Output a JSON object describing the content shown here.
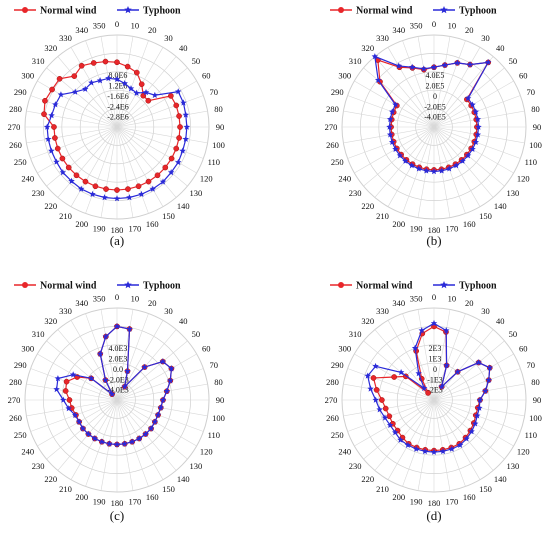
{
  "colors": {
    "normal": "#e8262a",
    "typhoon": "#2a2ad8",
    "grid": "#cfcfcf",
    "spoke": "#d8d8d8"
  },
  "chart_data": [
    {
      "type": "radar",
      "caption": "(a)",
      "legend": [
        "Normal wind",
        "Typhoon"
      ],
      "angle_labels": [
        "0",
        "10",
        "20",
        "30",
        "40",
        "50",
        "60",
        "70",
        "80",
        "90",
        "100",
        "110",
        "120",
        "130",
        "140",
        "150",
        "160",
        "170",
        "180",
        "190",
        "200",
        "210",
        "220",
        "230",
        "240",
        "250",
        "260",
        "270",
        "280",
        "290",
        "300",
        "310",
        "320",
        "330",
        "340",
        "350"
      ],
      "radial_tick_labels": [
        "8.0E6",
        "1.2E6",
        "-1.6E6",
        "-2.4E6",
        "-2.8E6"
      ],
      "rlim": [
        -2800000.0,
        8000000.0
      ],
      "series": [
        {
          "name": "Normal wind",
          "values": [
            4800000.0,
            4400000.0,
            4000000.0,
            3000000.0,
            2000000.0,
            2000000.0,
            4500000.0,
            4600000.0,
            4600000.0,
            4600000.0,
            4600000.0,
            4600000.0,
            4600000.0,
            4600000.0,
            4600000.0,
            4600000.0,
            4600000.0,
            4600000.0,
            4600000.0,
            4600000.0,
            4600000.0,
            4600000.0,
            4600000.0,
            4600000.0,
            4600000.0,
            4600000.0,
            4600000.0,
            4600000.0,
            5900000.0,
            6200000.0,
            6000000.0,
            6000000.0,
            5000000.0,
            5500000.0,
            5200000.0,
            5000000.0
          ]
        },
        {
          "name": "Typhoon",
          "values": [
            2800000.0,
            2400000.0,
            2000000.0,
            1800000.0,
            2500000.0,
            3000000.0,
            5500000.0,
            5500000.0,
            5400000.0,
            5400000.0,
            5400000.0,
            5400000.0,
            5500000.0,
            5500000.0,
            5600000.0,
            5600000.0,
            5600000.0,
            5600000.0,
            5600000.0,
            5600000.0,
            5600000.0,
            5600000.0,
            5500000.0,
            5500000.0,
            5400000.0,
            5400000.0,
            5400000.0,
            5400000.0,
            5000000.0,
            4900000.0,
            4800000.0,
            3600000.0,
            3000000.0,
            3200000.0,
            3000000.0,
            3000000.0
          ]
        }
      ]
    },
    {
      "type": "radar",
      "caption": "(b)",
      "legend": [
        "Normal wind",
        "Typhoon"
      ],
      "angle_labels": [
        "0",
        "10",
        "20",
        "30",
        "40",
        "50",
        "60",
        "70",
        "80",
        "90",
        "100",
        "110",
        "120",
        "130",
        "140",
        "150",
        "160",
        "170",
        "180",
        "190",
        "200",
        "210",
        "220",
        "230",
        "240",
        "250",
        "260",
        "270",
        "280",
        "290",
        "300",
        "310",
        "320",
        "330",
        "340",
        "350"
      ],
      "radial_tick_labels": [
        "4.0E5",
        "2.0E5",
        "0",
        "-2.0E5",
        "-4.0E5"
      ],
      "rlim": [
        -800000.0,
        400000.0
      ],
      "series": [
        {
          "name": "Normal wind",
          "values": [
            -20000.0,
            20000.0,
            90000.0,
            140000.0,
            300000.0,
            -240000.0,
            -240000.0,
            -240000.0,
            -240000.0,
            -240000.0,
            -240000.0,
            -240000.0,
            -240000.0,
            -240000.0,
            -240000.0,
            -240000.0,
            -240000.0,
            -240000.0,
            -240000.0,
            -240000.0,
            -240000.0,
            -240000.0,
            -240000.0,
            -240000.0,
            -240000.0,
            -240000.0,
            -240000.0,
            -240000.0,
            -240000.0,
            -240000.0,
            -240000.0,
            120000.0,
            340000.0,
            100000.0,
            20000.0,
            -40000.0
          ]
        },
        {
          "name": "Typhoon",
          "values": [
            -20000.0,
            20000.0,
            90000.0,
            140000.0,
            300000.0,
            -220000.0,
            -220000.0,
            -220000.0,
            -220000.0,
            -220000.0,
            -220000.0,
            -220000.0,
            -220000.0,
            -220000.0,
            -220000.0,
            -220000.0,
            -220000.0,
            -220000.0,
            -220000.0,
            -220000.0,
            -220000.0,
            -220000.0,
            -220000.0,
            -220000.0,
            -220000.0,
            -220000.0,
            -220000.0,
            -220000.0,
            -220000.0,
            -220000.0,
            -220000.0,
            150000.0,
            440000.0,
            120000.0,
            30000.0,
            -30000.0
          ]
        }
      ]
    },
    {
      "type": "radar",
      "caption": "(c)",
      "legend": [
        "Normal wind",
        "Typhoon"
      ],
      "angle_labels": [
        "0",
        "10",
        "20",
        "30",
        "40",
        "50",
        "60",
        "70",
        "80",
        "90",
        "100",
        "110",
        "120",
        "130",
        "140",
        "150",
        "160",
        "170",
        "180",
        "190",
        "200",
        "210",
        "220",
        "230",
        "240",
        "250",
        "260",
        "270",
        "280",
        "290",
        "300",
        "310",
        "320",
        "330",
        "340",
        "350"
      ],
      "radial_tick_labels": [
        "4.0E3",
        "2.0E3",
        "0.0",
        "-2.0E3",
        "-4.0E3"
      ],
      "rlim": [
        -8000.0,
        4000.0
      ],
      "series": [
        {
          "name": "Normal wind",
          "values": [
            1600.0,
            1400.0,
            -4000.0,
            -6000.0,
            -2400.0,
            -200.0,
            200.0,
            -600.0,
            -1400.0,
            -2000.0,
            -2200.0,
            -2300.0,
            -2300.0,
            -2200.0,
            -2200.0,
            -2200.0,
            -2200.0,
            -2200.0,
            -2200.0,
            -2200.0,
            -2200.0,
            -2200.0,
            -2200.0,
            -2200.0,
            -2300.0,
            -2300.0,
            -2000.0,
            -1800.0,
            -1200.0,
            -1000.0,
            -2000.0,
            -3600.0,
            -7000.0,
            -5000.0,
            -1600.0,
            400.0
          ]
        },
        {
          "name": "Typhoon",
          "values": [
            1600.0,
            1400.0,
            -4000.0,
            -6000.0,
            -2400.0,
            -200.0,
            200.0,
            -600.0,
            -1400.0,
            -2000.0,
            -2200.0,
            -2300.0,
            -2300.0,
            -2200.0,
            -2200.0,
            -2200.0,
            -2200.0,
            -2200.0,
            -2200.0,
            -2200.0,
            -2200.0,
            -2200.0,
            -2200.0,
            -2200.0,
            -2300.0,
            -2200.0,
            -1600.0,
            -1000.0,
            0.0,
            200.0,
            -1400.0,
            -3600.0,
            -7000.0,
            -5000.0,
            -1600.0,
            400.0
          ]
        }
      ]
    },
    {
      "type": "radar",
      "caption": "(d)",
      "legend": [
        "Normal wind",
        "Typhoon"
      ],
      "angle_labels": [
        "0",
        "10",
        "20",
        "30",
        "40",
        "50",
        "60",
        "70",
        "80",
        "90",
        "100",
        "110",
        "120",
        "130",
        "140",
        "150",
        "160",
        "170",
        "180",
        "190",
        "200",
        "210",
        "220",
        "230",
        "240",
        "250",
        "260",
        "270",
        "280",
        "290",
        "300",
        "310",
        "320",
        "330",
        "340",
        "350"
      ],
      "radial_tick_labels": [
        "2E3",
        "1E3",
        "0",
        "-1E3",
        "-2E3"
      ],
      "rlim": [
        -4000.0,
        2000.0
      ],
      "series": [
        {
          "name": "Normal wind",
          "values": [
            800.0,
            500.0,
            -1600.0,
            -3000.0,
            -1600.0,
            -200.0,
            200.0,
            -200.0,
            -600.0,
            -1000.0,
            -1100.0,
            -1100.0,
            -1000.0,
            -900.0,
            -800.0,
            -700.0,
            -700.0,
            -700.0,
            -700.0,
            -700.0,
            -700.0,
            -700.0,
            -800.0,
            -900.0,
            -900.0,
            -900.0,
            -800.0,
            -600.0,
            -200.0,
            200.0,
            -1000.0,
            -1600.0,
            -3400.0,
            -2400.0,
            -600.0,
            400.0
          ]
        },
        {
          "name": "Typhoon",
          "values": [
            1000.0,
            600.0,
            -1600.0,
            -3000.0,
            -1600.0,
            -200.0,
            200.0,
            -200.0,
            -600.0,
            -1000.0,
            -1000.0,
            -1000.0,
            -900.0,
            -800.0,
            -700.0,
            -600.0,
            -600.0,
            -600.0,
            -600.0,
            -600.0,
            -600.0,
            -600.0,
            -600.0,
            -700.0,
            -700.0,
            -600.0,
            -400.0,
            -200.0,
            200.0,
            600.0,
            400.0,
            -1200.0,
            -3000.0,
            -2000.0,
            -400.0,
            600.0
          ]
        }
      ]
    }
  ]
}
